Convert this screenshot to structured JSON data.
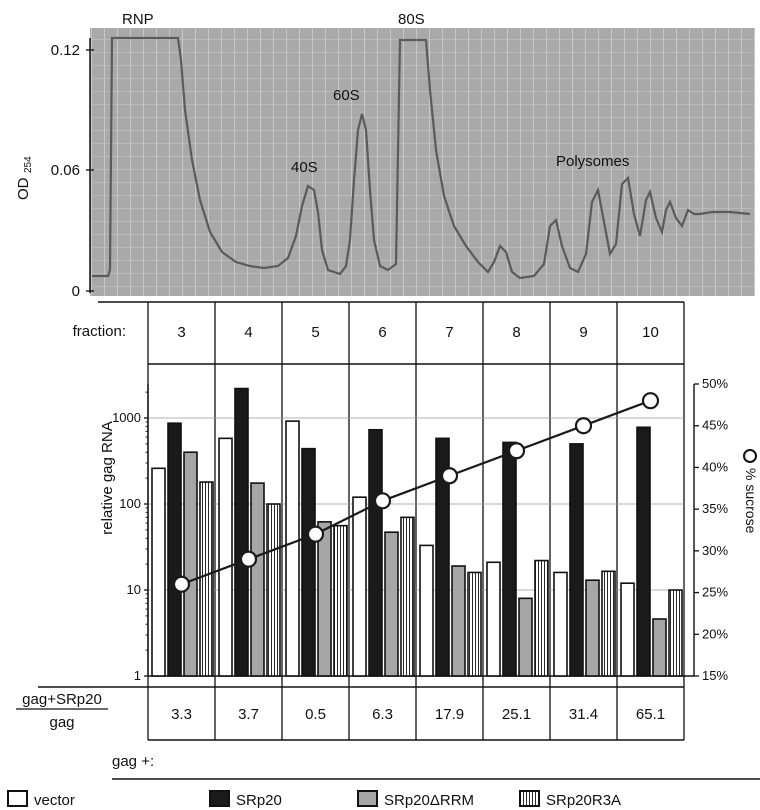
{
  "colors": {
    "gel_bg": "#a9a9a9",
    "trace": "#5b5b5b",
    "vector": "#ffffff",
    "srp20": "#1a1a1a",
    "srp20_drrm": "#a6a6a6",
    "sucrose_line": "#1a1a1a"
  },
  "profile": {
    "y_axis_label": "OD",
    "y_axis_subscript": "254",
    "y_ticks": [
      "0.12",
      "0.06",
      "0"
    ],
    "peak_labels": [
      "RNP",
      "80S",
      "60S",
      "40S",
      "Polysomes"
    ]
  },
  "fraction_row": {
    "label": "fraction:",
    "fractions": [
      "3",
      "4",
      "5",
      "6",
      "7",
      "8",
      "9",
      "10"
    ]
  },
  "chart_data": {
    "type": "bar",
    "categories": [
      "3",
      "4",
      "5",
      "6",
      "7",
      "8",
      "9",
      "10"
    ],
    "ylabel": "relative  gag  RNA",
    "y_scale": "log",
    "ylim": [
      1,
      3000
    ],
    "y_ticks": [
      "1000",
      "100",
      "10",
      "1"
    ],
    "y2label": "% sucrose",
    "y2lim": [
      15,
      50
    ],
    "y2_ticks": [
      "50%",
      "45%",
      "40%",
      "35%",
      "30%",
      "25%",
      "20%",
      "15%"
    ],
    "series": [
      {
        "name": "vector",
        "pattern": "white",
        "values": [
          260,
          580,
          920,
          120,
          33,
          21,
          16,
          12
        ]
      },
      {
        "name": "SRp20",
        "pattern": "black",
        "values": [
          870,
          2200,
          440,
          730,
          580,
          520,
          500,
          780
        ]
      },
      {
        "name": "SRp20ΔRRM",
        "pattern": "gray",
        "values": [
          400,
          175,
          62,
          47,
          19,
          8,
          13,
          4.6
        ]
      },
      {
        "name": "SRp20R3A",
        "pattern": "striped",
        "values": [
          180,
          100,
          56,
          70,
          16,
          22,
          16.5,
          10
        ]
      }
    ],
    "sucrose_line": {
      "name": "% sucrose",
      "values": [
        26,
        29,
        32,
        36,
        39,
        42,
        45,
        48
      ]
    },
    "grid": "horizontal at 10, 100, 1000"
  },
  "ratio_row": {
    "numerator": "gag+SRp20",
    "denominator": "gag",
    "values": [
      "3.3",
      "3.7",
      "0.5",
      "6.3",
      "17.9",
      "25.1",
      "31.4",
      "65.1"
    ]
  },
  "legend": {
    "title": "gag  +:",
    "items": [
      {
        "label": "vector",
        "pattern": "white"
      },
      {
        "label": "SRp20",
        "pattern": "black"
      },
      {
        "label": "SRp20ΔRRM",
        "pattern": "gray"
      },
      {
        "label": "SRp20R3A",
        "pattern": "striped"
      }
    ]
  }
}
